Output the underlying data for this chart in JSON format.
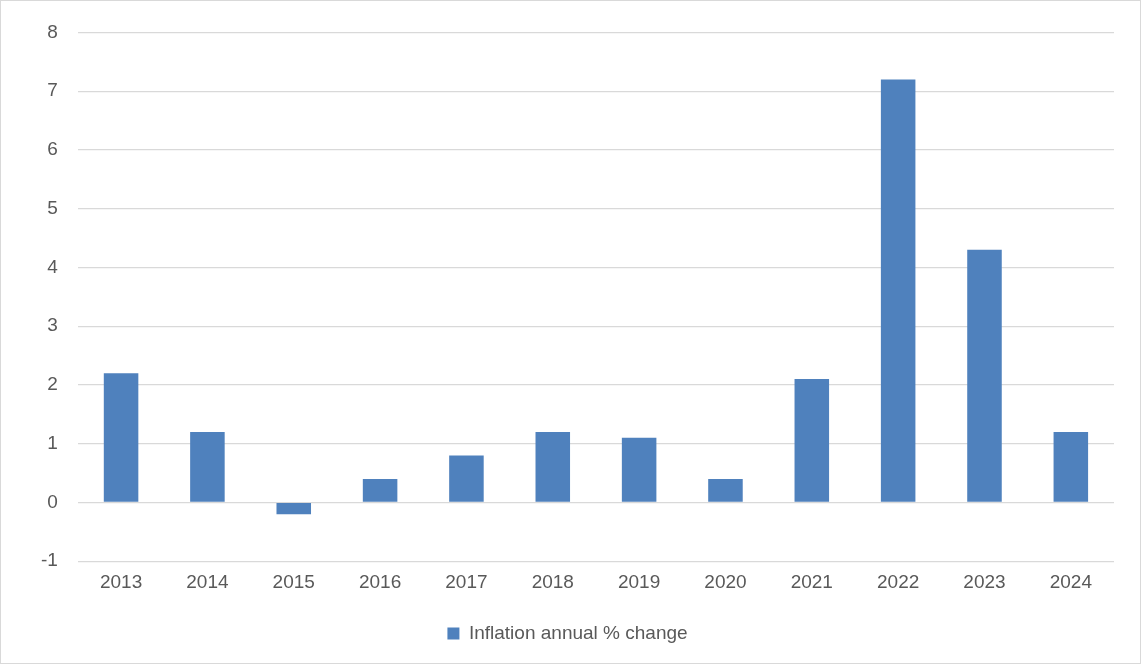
{
  "chart_data": {
    "type": "bar",
    "categories": [
      "2013",
      "2014",
      "2015",
      "2016",
      "2017",
      "2018",
      "2019",
      "2020",
      "2021",
      "2022",
      "2023",
      "2024"
    ],
    "series": [
      {
        "name": "Inflation annual % change",
        "color": "#4f81bd",
        "values": [
          2.2,
          1.2,
          -0.2,
          0.4,
          0.8,
          1.2,
          1.1,
          0.4,
          2.1,
          7.2,
          4.3,
          1.2
        ]
      }
    ],
    "ylim": [
      -1,
      8
    ],
    "yticks": [
      -1,
      0,
      1,
      2,
      3,
      4,
      5,
      6,
      7,
      8
    ],
    "grid": "y",
    "legend": "bottom"
  }
}
